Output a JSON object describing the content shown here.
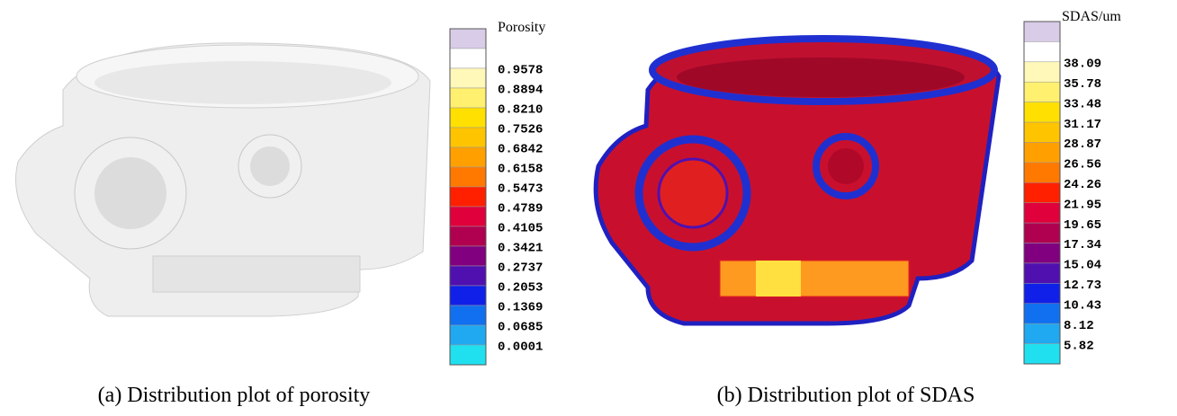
{
  "panels": [
    {
      "caption": "(a) Distribution plot of porosity",
      "legend": {
        "title": "Porosity",
        "labels": [
          "0.9578",
          "0.8894",
          "0.8210",
          "0.7526",
          "0.6842",
          "0.6158",
          "0.5473",
          "0.4789",
          "0.4105",
          "0.3421",
          "0.2737",
          "0.2053",
          "0.1369",
          "0.0685",
          "0.0001"
        ]
      }
    },
    {
      "caption": "(b) Distribution plot of SDAS",
      "legend": {
        "title": "SDAS/um",
        "labels": [
          "38.09",
          "35.78",
          "33.48",
          "31.17",
          "28.87",
          "26.56",
          "24.26",
          "21.95",
          "19.65",
          "17.34",
          "15.04",
          "12.73",
          "10.43",
          "8.12",
          "5.82"
        ]
      }
    }
  ],
  "legend_colors": [
    "#d8cce8",
    "#ffffff",
    "#fff8b8",
    "#fff070",
    "#ffe000",
    "#ffc400",
    "#ffa000",
    "#ff7800",
    "#ff2000",
    "#e0003c",
    "#b00050",
    "#800080",
    "#5010b0",
    "#1020e8",
    "#1070f0",
    "#20a8f0",
    "#20e0f0"
  ]
}
